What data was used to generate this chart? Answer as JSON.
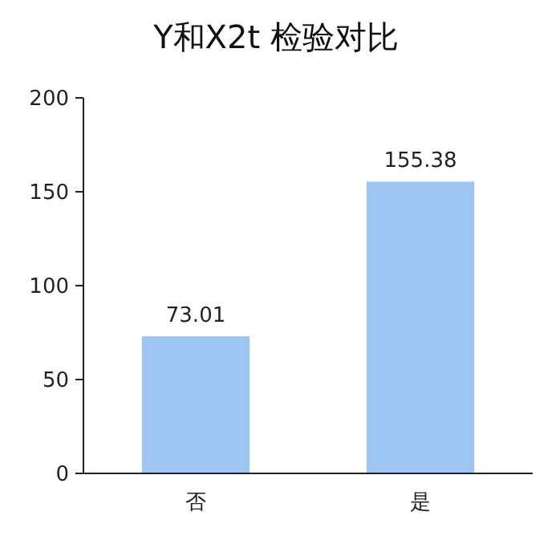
{
  "chart_data": {
    "type": "bar",
    "title": "Y和X2t 检验对比",
    "categories": [
      "否",
      "是"
    ],
    "values": [
      73.01,
      155.38
    ],
    "color": "#9fc5f3",
    "ylim": [
      0,
      200
    ],
    "yticks": [
      0,
      50,
      100,
      150,
      200
    ],
    "data_labels": true
  }
}
